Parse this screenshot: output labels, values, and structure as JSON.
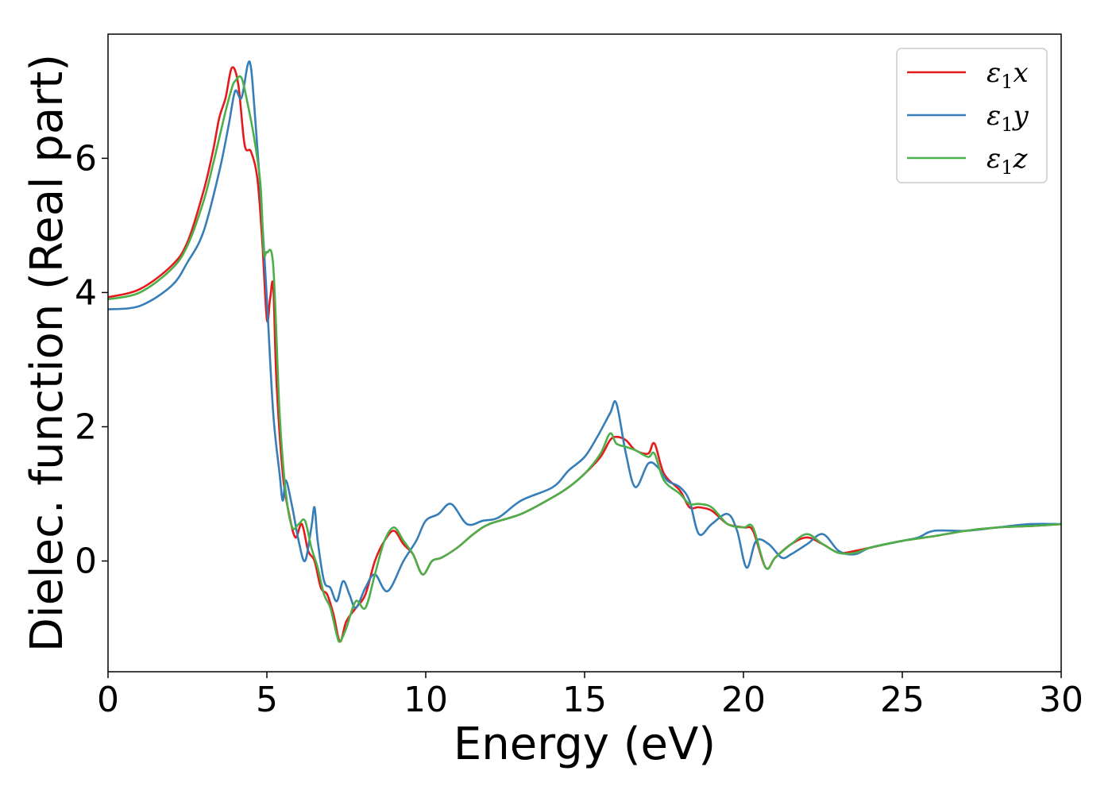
{
  "chart_data": {
    "type": "line",
    "xlabel": "Energy (eV)",
    "ylabel": "Dielec. function (Real part)",
    "xlim": [
      0,
      30
    ],
    "ylim": [
      -1.65,
      7.85
    ],
    "xticks": [
      0,
      5,
      10,
      15,
      20,
      25,
      30
    ],
    "yticks": [
      0,
      2,
      4,
      6
    ],
    "grid": false,
    "legend": "top-right",
    "series": [
      {
        "name": "ε₁x",
        "legend_base": "ε",
        "legend_sub": "1",
        "legend_tail": "x",
        "color": "#e41a1c",
        "x": [
          0,
          1,
          2,
          2.5,
          3,
          3.3,
          3.5,
          3.7,
          3.9,
          4.1,
          4.3,
          4.5,
          4.7,
          4.85,
          5.0,
          5.1,
          5.2,
          5.3,
          5.5,
          5.7,
          5.9,
          6.1,
          6.3,
          6.5,
          6.7,
          6.9,
          7.1,
          7.3,
          7.5,
          7.8,
          8.1,
          8.4,
          8.7,
          9.0,
          9.3,
          9.6,
          9.9,
          10.2,
          10.5,
          11,
          11.5,
          12,
          13,
          14,
          14.5,
          15,
          15.5,
          15.8,
          16,
          16.3,
          16.6,
          17,
          17.2,
          17.5,
          18,
          18.3,
          18.6,
          19,
          19.5,
          20,
          20.3,
          20.7,
          21,
          21.5,
          22,
          22.5,
          23,
          23.5,
          24,
          25,
          26,
          27,
          28,
          29,
          30
        ],
        "values": [
          3.93,
          4.05,
          4.4,
          4.75,
          5.5,
          6.1,
          6.6,
          6.9,
          7.35,
          7.1,
          6.2,
          6.1,
          5.7,
          4.8,
          3.6,
          3.9,
          4.1,
          2.7,
          1.3,
          0.7,
          0.35,
          0.55,
          0.15,
          0.0,
          -0.4,
          -0.5,
          -0.8,
          -1.2,
          -0.9,
          -0.7,
          -0.5,
          0.0,
          0.3,
          0.45,
          0.25,
          0.1,
          -0.2,
          0.0,
          0.05,
          0.2,
          0.4,
          0.55,
          0.7,
          0.95,
          1.1,
          1.3,
          1.55,
          1.8,
          1.85,
          1.8,
          1.65,
          1.6,
          1.75,
          1.3,
          1.05,
          0.8,
          0.8,
          0.75,
          0.55,
          0.5,
          0.45,
          -0.1,
          0.05,
          0.25,
          0.35,
          0.25,
          0.12,
          0.15,
          0.2,
          0.3,
          0.37,
          0.45,
          0.5,
          0.52,
          0.55
        ]
      },
      {
        "name": "ε₁y",
        "legend_base": "ε",
        "legend_sub": "1",
        "legend_tail": "y",
        "color": "#377eb8",
        "x": [
          0,
          1,
          2,
          2.5,
          3,
          3.5,
          3.8,
          4.0,
          4.2,
          4.4,
          4.5,
          4.6,
          4.8,
          5.0,
          5.2,
          5.4,
          5.5,
          5.6,
          5.8,
          6.0,
          6.2,
          6.4,
          6.5,
          6.6,
          6.8,
          7.0,
          7.2,
          7.4,
          7.6,
          7.8,
          8.1,
          8.4,
          8.8,
          9.3,
          9.7,
          10,
          10.4,
          10.8,
          11.3,
          11.8,
          12.3,
          13,
          14,
          14.5,
          15,
          15.4,
          15.8,
          16,
          16.3,
          16.6,
          17,
          17.3,
          17.6,
          18,
          18.3,
          18.6,
          19,
          19.5,
          19.8,
          20.1,
          20.4,
          20.8,
          21.2,
          21.5,
          22,
          22.5,
          23,
          23.5,
          24,
          25,
          25.5,
          26,
          27,
          28,
          29,
          30
        ],
        "values": [
          3.75,
          3.8,
          4.1,
          4.45,
          4.9,
          5.8,
          6.5,
          7.0,
          6.9,
          7.4,
          7.35,
          6.8,
          5.5,
          3.9,
          2.2,
          1.3,
          0.9,
          1.2,
          0.8,
          0.3,
          0.0,
          0.5,
          0.8,
          0.3,
          -0.3,
          -0.4,
          -0.6,
          -0.3,
          -0.5,
          -0.7,
          -0.4,
          -0.2,
          -0.45,
          0.0,
          0.3,
          0.6,
          0.7,
          0.85,
          0.55,
          0.6,
          0.65,
          0.9,
          1.1,
          1.35,
          1.55,
          1.85,
          2.2,
          2.35,
          1.6,
          1.1,
          1.45,
          1.4,
          1.2,
          1.1,
          0.9,
          0.4,
          0.55,
          0.7,
          0.45,
          -0.1,
          0.3,
          0.25,
          0.05,
          0.1,
          0.25,
          0.4,
          0.15,
          0.1,
          0.2,
          0.3,
          0.35,
          0.45,
          0.45,
          0.5,
          0.55,
          0.55
        ]
      },
      {
        "name": "ε₁z",
        "legend_base": "ε",
        "legend_sub": "1",
        "legend_tail": "z",
        "color": "#4daf4a",
        "x": [
          0,
          1,
          2,
          2.5,
          3,
          3.3,
          3.5,
          3.7,
          3.9,
          4.0,
          4.2,
          4.4,
          4.6,
          4.8,
          4.9,
          5.0,
          5.2,
          5.4,
          5.6,
          5.8,
          6.0,
          6.2,
          6.4,
          6.6,
          6.8,
          7.0,
          7.2,
          7.3,
          7.5,
          7.8,
          8.1,
          8.4,
          8.7,
          9.0,
          9.3,
          9.6,
          9.9,
          10.2,
          10.5,
          11,
          11.5,
          12,
          13,
          14,
          14.5,
          15,
          15.5,
          15.8,
          16,
          16.3,
          16.6,
          17,
          17.2,
          17.5,
          18,
          18.3,
          18.6,
          19,
          19.5,
          20,
          20.3,
          20.7,
          21,
          21.5,
          22,
          22.5,
          23,
          23.5,
          24,
          25,
          26,
          27,
          28,
          29,
          30
        ],
        "values": [
          3.9,
          4.0,
          4.35,
          4.7,
          5.35,
          5.9,
          6.3,
          6.7,
          7.05,
          7.15,
          7.2,
          6.8,
          6.3,
          5.6,
          4.6,
          4.6,
          4.4,
          2.2,
          1.0,
          0.5,
          0.55,
          0.6,
          0.2,
          -0.1,
          -0.5,
          -0.7,
          -1.1,
          -1.2,
          -1.0,
          -0.6,
          -0.7,
          -0.2,
          0.3,
          0.5,
          0.3,
          0.1,
          -0.2,
          0.0,
          0.05,
          0.2,
          0.4,
          0.55,
          0.7,
          0.95,
          1.1,
          1.3,
          1.6,
          1.9,
          1.75,
          1.7,
          1.65,
          1.55,
          1.6,
          1.2,
          1.0,
          0.85,
          0.85,
          0.8,
          0.55,
          0.5,
          0.5,
          -0.1,
          0.05,
          0.25,
          0.4,
          0.25,
          0.12,
          0.12,
          0.2,
          0.3,
          0.37,
          0.45,
          0.5,
          0.52,
          0.55
        ]
      }
    ]
  }
}
